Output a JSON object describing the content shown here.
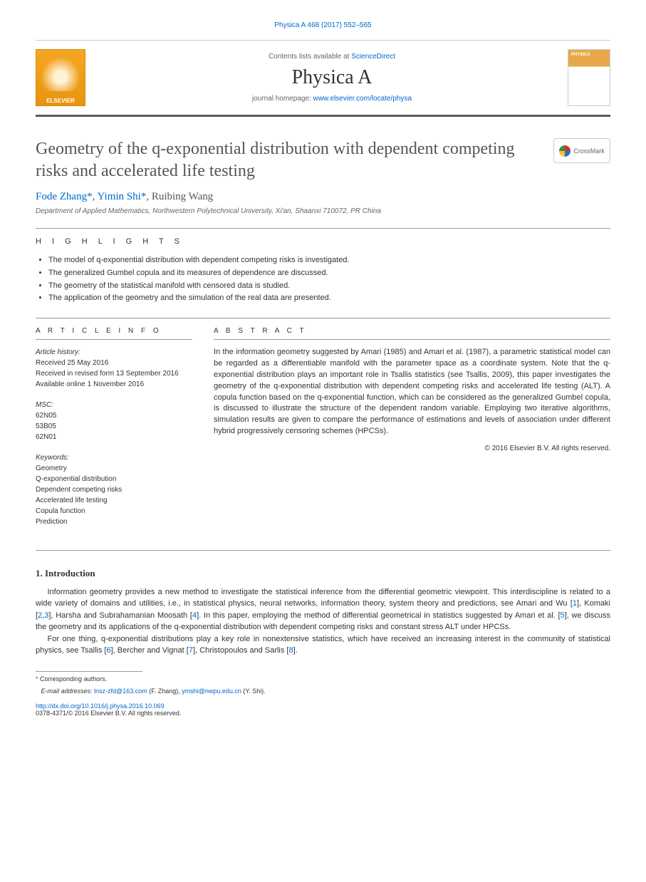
{
  "citation": "Physica A 468 (2017) 552–565",
  "header": {
    "contents_prefix": "Contents lists available at ",
    "contents_link": "ScienceDirect",
    "journal": "Physica A",
    "homepage_prefix": "journal homepage: ",
    "homepage_link": "www.elsevier.com/locate/physa",
    "publisher": "ELSEVIER"
  },
  "article": {
    "title": "Geometry of the q-exponential distribution with dependent competing risks and accelerated life testing",
    "crossmark": "CrossMark",
    "authors_html": {
      "a1": "Fode Zhang",
      "star1": "*",
      "sep1": ", ",
      "a2": "Yimin Shi",
      "star2": "*",
      "sep2": ", ",
      "a3": "Ruibing Wang"
    },
    "affiliation": "Department of Applied Mathematics, Northwestern Polytechnical University, Xi'an, Shaanxi 710072, PR China"
  },
  "highlights": {
    "heading": "H I G H L I G H T S",
    "items": [
      "The model of q-exponential distribution with dependent competing risks is investigated.",
      "The generalized Gumbel copula and its measures of dependence are discussed.",
      "The geometry of the statistical manifold with censored data is studied.",
      "The application of the geometry and the simulation of the real data are presented."
    ]
  },
  "info": {
    "heading": "A R T I C L E   I N F O",
    "history_label": "Article history:",
    "history": [
      "Received 25 May 2016",
      "Received in revised form 13 September 2016",
      "Available online 1 November 2016"
    ],
    "msc_label": "MSC:",
    "msc": [
      "62N05",
      "53B05",
      "62N01"
    ],
    "keywords_label": "Keywords:",
    "keywords": [
      "Geometry",
      "Q-exponential distribution",
      "Dependent competing risks",
      "Accelerated life testing",
      "Copula function",
      "Prediction"
    ]
  },
  "abstract": {
    "heading": "A B S T R A C T",
    "text": "In the information geometry suggested by Amari (1985) and Amari et al. (1987), a parametric statistical model can be regarded as a differentiable manifold with the parameter space as a coordinate system. Note that the q-exponential distribution plays an important role in Tsallis statistics (see Tsallis, 2009), this paper investigates the geometry of the q-exponential distribution with dependent competing risks and accelerated life testing (ALT). A copula function based on the q-exponential function, which can be considered as the generalized Gumbel copula, is discussed to illustrate the structure of the dependent random variable. Employing two iterative algorithms, simulation results are given to compare the performance of estimations and levels of association under different hybrid progressively censoring schemes (HPCSs).",
    "copyright": "© 2016 Elsevier B.V. All rights reserved."
  },
  "intro": {
    "heading": "1. Introduction",
    "p1_pre": "Information geometry provides a new method to investigate the statistical inference from the differential geometric viewpoint. This interdiscipline is related to a wide variety of domains and utilities, i.e., in statistical physics, neural networks, information theory, system theory and predictions, see Amari and Wu [",
    "r1": "1",
    "p1_m1": "], Komaki [",
    "r2": "2",
    "p1_m2": ",",
    "r3": "3",
    "p1_m3": "], Harsha and Subrahamanian Moosath [",
    "r4": "4",
    "p1_m4": "]. In this paper, employing the method of differential geometrical in statistics suggested by Amari et al. [",
    "r5": "5",
    "p1_end": "], we discuss the geometry and its applications of the q-exponential distribution with dependent competing risks and constant stress ALT under HPCSs.",
    "p2_pre": "For one thing, q-exponential distributions play a key role in nonextensive statistics, which have received an increasing interest in the community of statistical physics, see Tsallis [",
    "r6": "6",
    "p2_m1": "], Bercher and Vignat [",
    "r7": "7",
    "p2_m2": "], Christopoulos and Sarlis [",
    "r8": "8",
    "p2_end": "]."
  },
  "footer": {
    "corresponding": "Corresponding authors.",
    "email_label": "E-mail addresses: ",
    "email1": "lnsz-zfd@163.com",
    "email1_who": " (F. Zhang), ",
    "email2": "ymshi@nwpu.edu.cn",
    "email2_who": " (Y. Shi).",
    "doi": "http://dx.doi.org/10.1016/j.physa.2016.10.069",
    "issn": "0378-4371/© 2016 Elsevier B.V. All rights reserved."
  },
  "colors": {
    "link": "#0066cc",
    "text": "#333333",
    "elsevier_orange": "#f5a623"
  }
}
